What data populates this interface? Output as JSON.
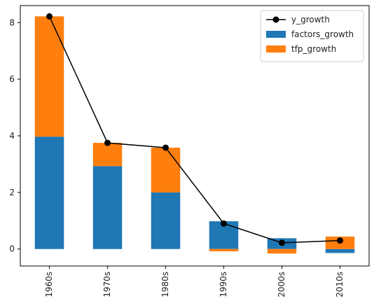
{
  "chart_data": {
    "type": "bar",
    "stacked": true,
    "title": "",
    "xlabel": "",
    "ylabel": "",
    "categories": [
      "1960s",
      "1970s",
      "1980s",
      "1990s",
      "2000s",
      "2010s"
    ],
    "series": [
      {
        "name": "factors_growth",
        "kind": "bar",
        "color": "#1f77b4",
        "values": [
          3.97,
          2.93,
          2.0,
          0.98,
          0.38,
          -0.14
        ]
      },
      {
        "name": "tfp_growth",
        "kind": "bar",
        "color": "#ff7f0e",
        "values": [
          4.25,
          0.82,
          1.58,
          -0.08,
          -0.16,
          0.44
        ]
      },
      {
        "name": "y_growth",
        "kind": "line",
        "marker": "circle",
        "color": "#000000",
        "values": [
          8.22,
          3.75,
          3.58,
          0.9,
          0.22,
          0.3
        ]
      }
    ],
    "ylim": [
      -0.6,
      8.6
    ],
    "yticks": [
      0,
      2,
      4,
      6,
      8
    ],
    "xtick_rotation": 90,
    "grid": false,
    "legend": {
      "position": "top-right",
      "order": [
        "y_growth",
        "factors_growth",
        "tfp_growth"
      ]
    }
  }
}
